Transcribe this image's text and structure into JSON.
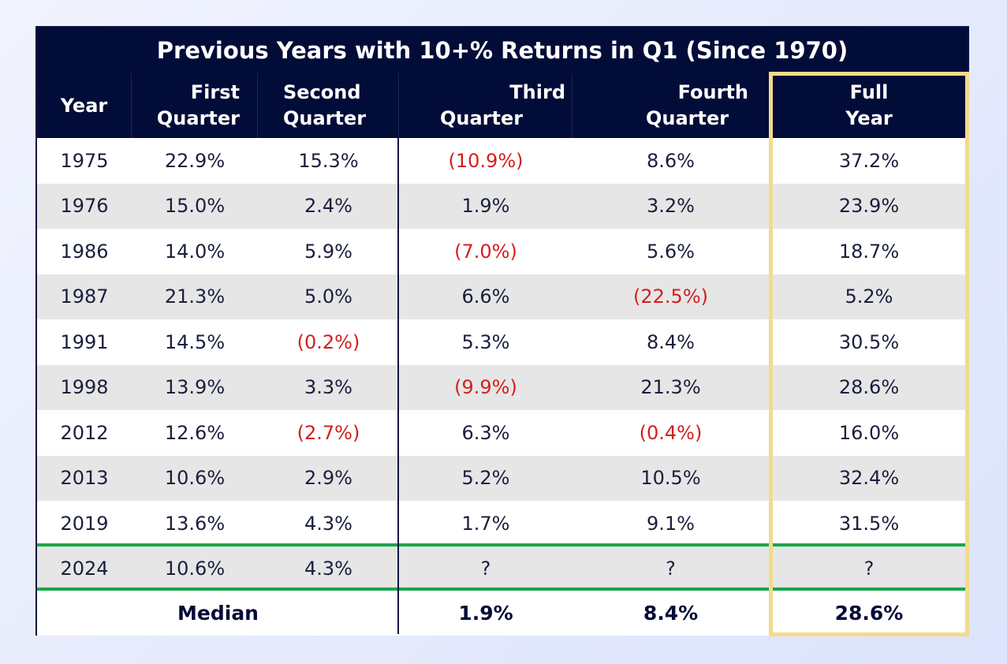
{
  "colors": {
    "header_bg": "#020c38",
    "negative": "#d21f1f",
    "highlight": "#f2dc8a",
    "divider": "#1aa64a"
  },
  "chart_data": {
    "type": "table",
    "title": "Previous Years with 10+% Returns in Q1 (Since 1970)",
    "columns": [
      {
        "line1": "Year",
        "line2": ""
      },
      {
        "line1": "First",
        "line2": "Quarter"
      },
      {
        "line1": "Second",
        "line2": "Quarter"
      },
      {
        "line1": "Third",
        "line2": "Quarter"
      },
      {
        "line1": "Fourth",
        "line2": "Quarter"
      },
      {
        "line1": "Full",
        "line2": "Year"
      }
    ],
    "rows": [
      [
        "1975",
        "22.9%",
        "15.3%",
        "(10.9%)",
        "8.6%",
        "37.2%"
      ],
      [
        "1976",
        "15.0%",
        "2.4%",
        "1.9%",
        "3.2%",
        "23.9%"
      ],
      [
        "1986",
        "14.0%",
        "5.9%",
        "(7.0%)",
        "5.6%",
        "18.7%"
      ],
      [
        "1987",
        "21.3%",
        "5.0%",
        "6.6%",
        "(22.5%)",
        "5.2%"
      ],
      [
        "1991",
        "14.5%",
        "(0.2%)",
        "5.3%",
        "8.4%",
        "30.5%"
      ],
      [
        "1998",
        "13.9%",
        "3.3%",
        "(9.9%)",
        "21.3%",
        "28.6%"
      ],
      [
        "2012",
        "12.6%",
        "(2.7%)",
        "6.3%",
        "(0.4%)",
        "16.0%"
      ],
      [
        "2013",
        "10.6%",
        "2.9%",
        "5.2%",
        "10.5%",
        "32.4%"
      ],
      [
        "2019",
        "13.6%",
        "4.3%",
        "1.7%",
        "9.1%",
        "31.5%"
      ],
      [
        "2024",
        "10.6%",
        "4.3%",
        "?",
        "?",
        "?"
      ]
    ],
    "median": {
      "label": "Median",
      "third_quarter": "1.9%",
      "fourth_quarter": "8.4%",
      "full_year": "28.6%"
    },
    "highlighted_column": "Full Year"
  }
}
